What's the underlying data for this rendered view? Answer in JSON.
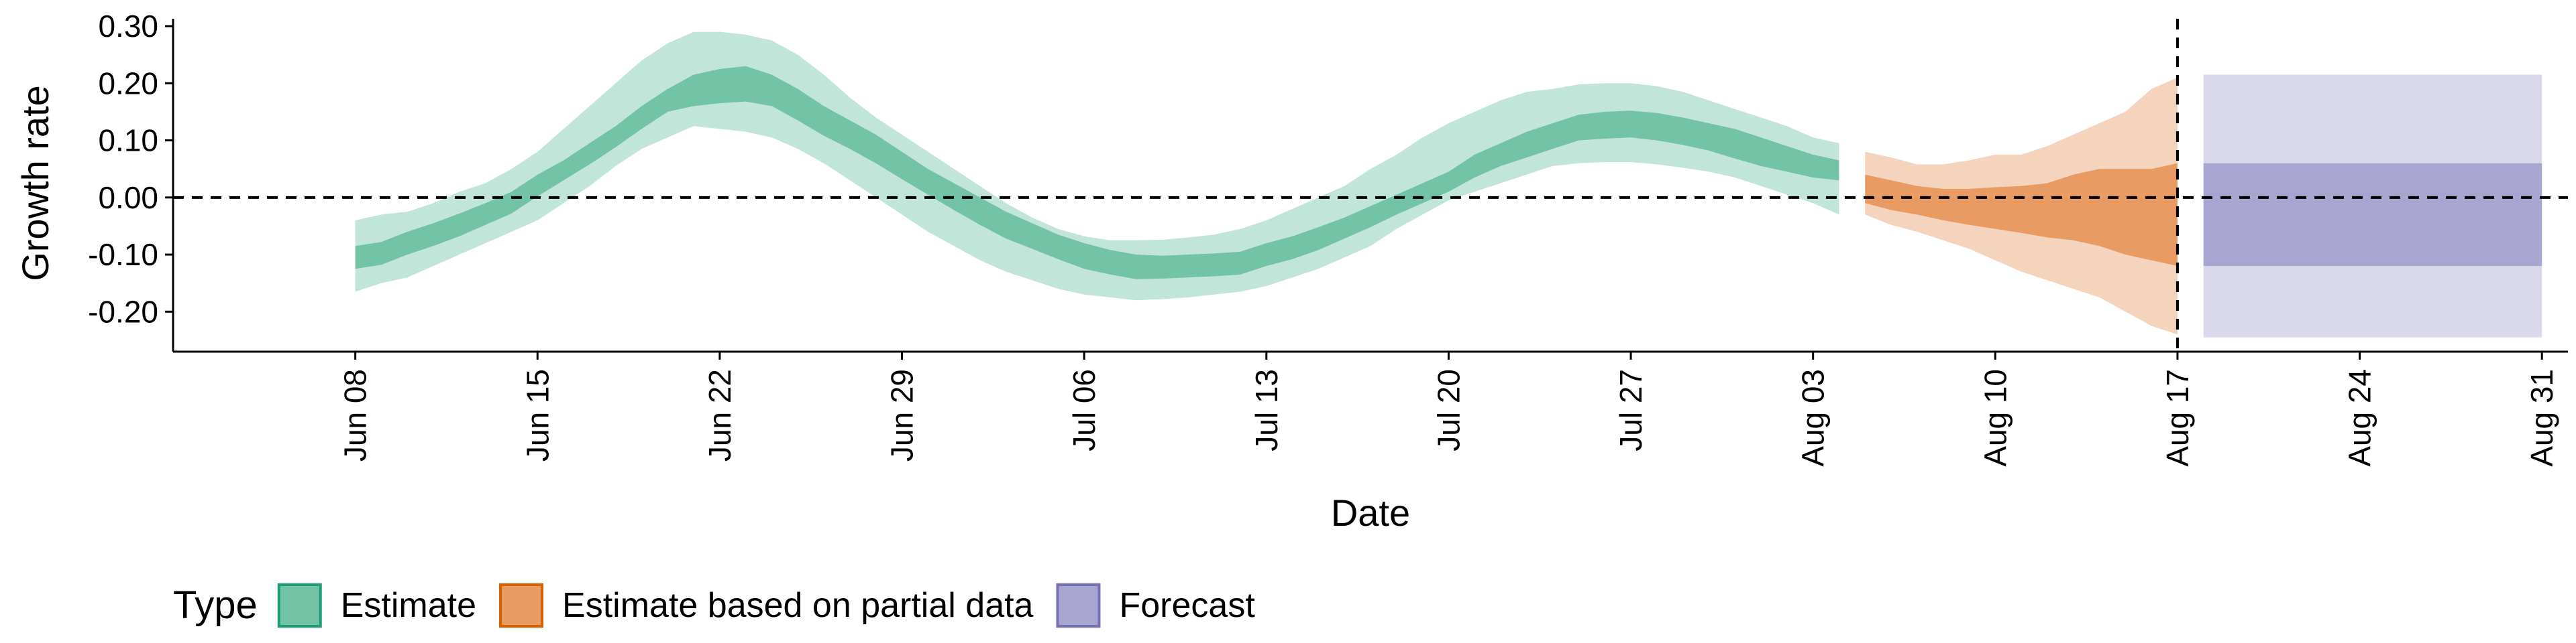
{
  "chart_data": {
    "type": "area",
    "xlabel": "Date",
    "ylabel": "Growth rate",
    "xlim": [
      "2020-06-01",
      "2020-09-01"
    ],
    "ylim": [
      -0.27,
      0.32
    ],
    "y_ticks": [
      0.3,
      0.2,
      0.1,
      0.0,
      -0.1,
      -0.2
    ],
    "y_tick_labels": [
      "0.30",
      "0.20",
      "0.10",
      "0.00",
      "-0.10",
      "-0.20"
    ],
    "x_ticks": [
      "2020-06-08",
      "2020-06-15",
      "2020-06-22",
      "2020-06-29",
      "2020-07-06",
      "2020-07-13",
      "2020-07-20",
      "2020-07-27",
      "2020-08-03",
      "2020-08-10",
      "2020-08-17",
      "2020-08-24",
      "2020-08-31"
    ],
    "x_tick_labels": [
      "Jun 08",
      "Jun 15",
      "Jun 22",
      "Jun 29",
      "Jul 06",
      "Jul 13",
      "Jul 20",
      "Jul 27",
      "Aug 03",
      "Aug 10",
      "Aug 17",
      "Aug 24",
      "Aug 31"
    ],
    "reference_lines": {
      "horizontal_y": 0.0,
      "vertical_x": "2020-08-17"
    },
    "legend": {
      "title": "Type",
      "position": "bottom",
      "items": [
        {
          "label": "Estimate",
          "fill": "#73c4a7",
          "border": "#1b9e77"
        },
        {
          "label": "Estimate based on partial data",
          "fill": "#e89b62",
          "border": "#d95f02"
        },
        {
          "label": "Forecast",
          "fill": "#a8a5d1",
          "border": "#7570b3"
        }
      ]
    },
    "series": [
      {
        "name": "Estimate",
        "color_inner": "#73c4a7",
        "color_outer": "#c2e5d9",
        "x": [
          "2020-06-08",
          "2020-06-09",
          "2020-06-10",
          "2020-06-11",
          "2020-06-12",
          "2020-06-13",
          "2020-06-14",
          "2020-06-15",
          "2020-06-16",
          "2020-06-17",
          "2020-06-18",
          "2020-06-19",
          "2020-06-20",
          "2020-06-21",
          "2020-06-22",
          "2020-06-23",
          "2020-06-24",
          "2020-06-25",
          "2020-06-26",
          "2020-06-27",
          "2020-06-28",
          "2020-06-29",
          "2020-06-30",
          "2020-07-01",
          "2020-07-02",
          "2020-07-03",
          "2020-07-04",
          "2020-07-05",
          "2020-07-06",
          "2020-07-07",
          "2020-07-08",
          "2020-07-09",
          "2020-07-10",
          "2020-07-11",
          "2020-07-12",
          "2020-07-13",
          "2020-07-14",
          "2020-07-15",
          "2020-07-16",
          "2020-07-17",
          "2020-07-18",
          "2020-07-19",
          "2020-07-20",
          "2020-07-21",
          "2020-07-22",
          "2020-07-23",
          "2020-07-24",
          "2020-07-25",
          "2020-07-26",
          "2020-07-27",
          "2020-07-28",
          "2020-07-29",
          "2020-07-30",
          "2020-07-31",
          "2020-08-01",
          "2020-08-02",
          "2020-08-03",
          "2020-08-04"
        ],
        "inner_upper": [
          -0.085,
          -0.078,
          -0.06,
          -0.045,
          -0.028,
          -0.01,
          0.01,
          0.04,
          0.065,
          0.095,
          0.125,
          0.16,
          0.19,
          0.215,
          0.225,
          0.23,
          0.215,
          0.19,
          0.16,
          0.135,
          0.11,
          0.08,
          0.05,
          0.025,
          0.0,
          -0.025,
          -0.045,
          -0.065,
          -0.08,
          -0.092,
          -0.1,
          -0.102,
          -0.1,
          -0.098,
          -0.095,
          -0.08,
          -0.068,
          -0.052,
          -0.035,
          -0.015,
          0.005,
          0.025,
          0.045,
          0.075,
          0.095,
          0.115,
          0.13,
          0.145,
          0.15,
          0.152,
          0.148,
          0.14,
          0.13,
          0.12,
          0.105,
          0.09,
          0.075,
          0.065
        ],
        "inner_lower": [
          -0.125,
          -0.118,
          -0.1,
          -0.085,
          -0.068,
          -0.048,
          -0.028,
          0.002,
          0.03,
          0.058,
          0.088,
          0.12,
          0.15,
          0.16,
          0.165,
          0.168,
          0.16,
          0.135,
          0.108,
          0.085,
          0.06,
          0.032,
          0.005,
          -0.022,
          -0.048,
          -0.072,
          -0.09,
          -0.108,
          -0.125,
          -0.135,
          -0.143,
          -0.142,
          -0.14,
          -0.138,
          -0.135,
          -0.12,
          -0.108,
          -0.092,
          -0.072,
          -0.052,
          -0.03,
          -0.01,
          0.01,
          0.035,
          0.055,
          0.07,
          0.085,
          0.1,
          0.103,
          0.105,
          0.1,
          0.092,
          0.082,
          0.068,
          0.055,
          0.045,
          0.035,
          0.03
        ],
        "outer_upper": [
          -0.04,
          -0.03,
          -0.025,
          -0.01,
          0.01,
          0.025,
          0.05,
          0.08,
          0.12,
          0.16,
          0.2,
          0.24,
          0.27,
          0.29,
          0.29,
          0.285,
          0.275,
          0.25,
          0.215,
          0.175,
          0.14,
          0.11,
          0.08,
          0.05,
          0.02,
          -0.01,
          -0.035,
          -0.055,
          -0.068,
          -0.075,
          -0.075,
          -0.074,
          -0.07,
          -0.065,
          -0.055,
          -0.04,
          -0.02,
          0.0,
          0.02,
          0.05,
          0.075,
          0.105,
          0.13,
          0.15,
          0.17,
          0.185,
          0.19,
          0.198,
          0.2,
          0.2,
          0.195,
          0.185,
          0.17,
          0.155,
          0.14,
          0.125,
          0.105,
          0.095
        ],
        "outer_lower": [
          -0.165,
          -0.15,
          -0.14,
          -0.12,
          -0.1,
          -0.08,
          -0.06,
          -0.04,
          -0.01,
          0.02,
          0.055,
          0.085,
          0.105,
          0.125,
          0.12,
          0.115,
          0.105,
          0.085,
          0.06,
          0.03,
          0.0,
          -0.03,
          -0.06,
          -0.085,
          -0.11,
          -0.13,
          -0.145,
          -0.16,
          -0.17,
          -0.175,
          -0.18,
          -0.178,
          -0.175,
          -0.17,
          -0.165,
          -0.155,
          -0.14,
          -0.125,
          -0.105,
          -0.085,
          -0.055,
          -0.03,
          -0.005,
          0.01,
          0.025,
          0.04,
          0.055,
          0.06,
          0.062,
          0.062,
          0.058,
          0.052,
          0.045,
          0.035,
          0.02,
          0.005,
          -0.01,
          -0.03
        ]
      },
      {
        "name": "Estimate based on partial data",
        "color_inner": "#e89b62",
        "color_outer": "#f5d4bd",
        "x": [
          "2020-08-05",
          "2020-08-06",
          "2020-08-07",
          "2020-08-08",
          "2020-08-09",
          "2020-08-10",
          "2020-08-11",
          "2020-08-12",
          "2020-08-13",
          "2020-08-14",
          "2020-08-15",
          "2020-08-16",
          "2020-08-17"
        ],
        "inner_upper": [
          0.04,
          0.03,
          0.02,
          0.015,
          0.015,
          0.018,
          0.02,
          0.025,
          0.04,
          0.05,
          0.05,
          0.05,
          0.06
        ],
        "inner_lower": [
          -0.01,
          -0.022,
          -0.03,
          -0.04,
          -0.048,
          -0.055,
          -0.062,
          -0.07,
          -0.075,
          -0.085,
          -0.1,
          -0.11,
          -0.12
        ],
        "outer_upper": [
          0.08,
          0.07,
          0.058,
          0.058,
          0.065,
          0.075,
          0.075,
          0.09,
          0.11,
          0.13,
          0.15,
          0.19,
          0.21
        ],
        "outer_lower": [
          -0.03,
          -0.048,
          -0.06,
          -0.075,
          -0.09,
          -0.11,
          -0.13,
          -0.145,
          -0.16,
          -0.175,
          -0.2,
          -0.225,
          -0.24
        ]
      },
      {
        "name": "Forecast",
        "color_inner": "#a8a5d1",
        "color_outer": "#dad9ec",
        "x": [
          "2020-08-18",
          "2020-08-31"
        ],
        "inner_upper": [
          0.06,
          0.06
        ],
        "inner_lower": [
          -0.12,
          -0.12
        ],
        "outer_upper": [
          0.215,
          0.215
        ],
        "outer_lower": [
          -0.245,
          -0.245
        ]
      }
    ]
  }
}
